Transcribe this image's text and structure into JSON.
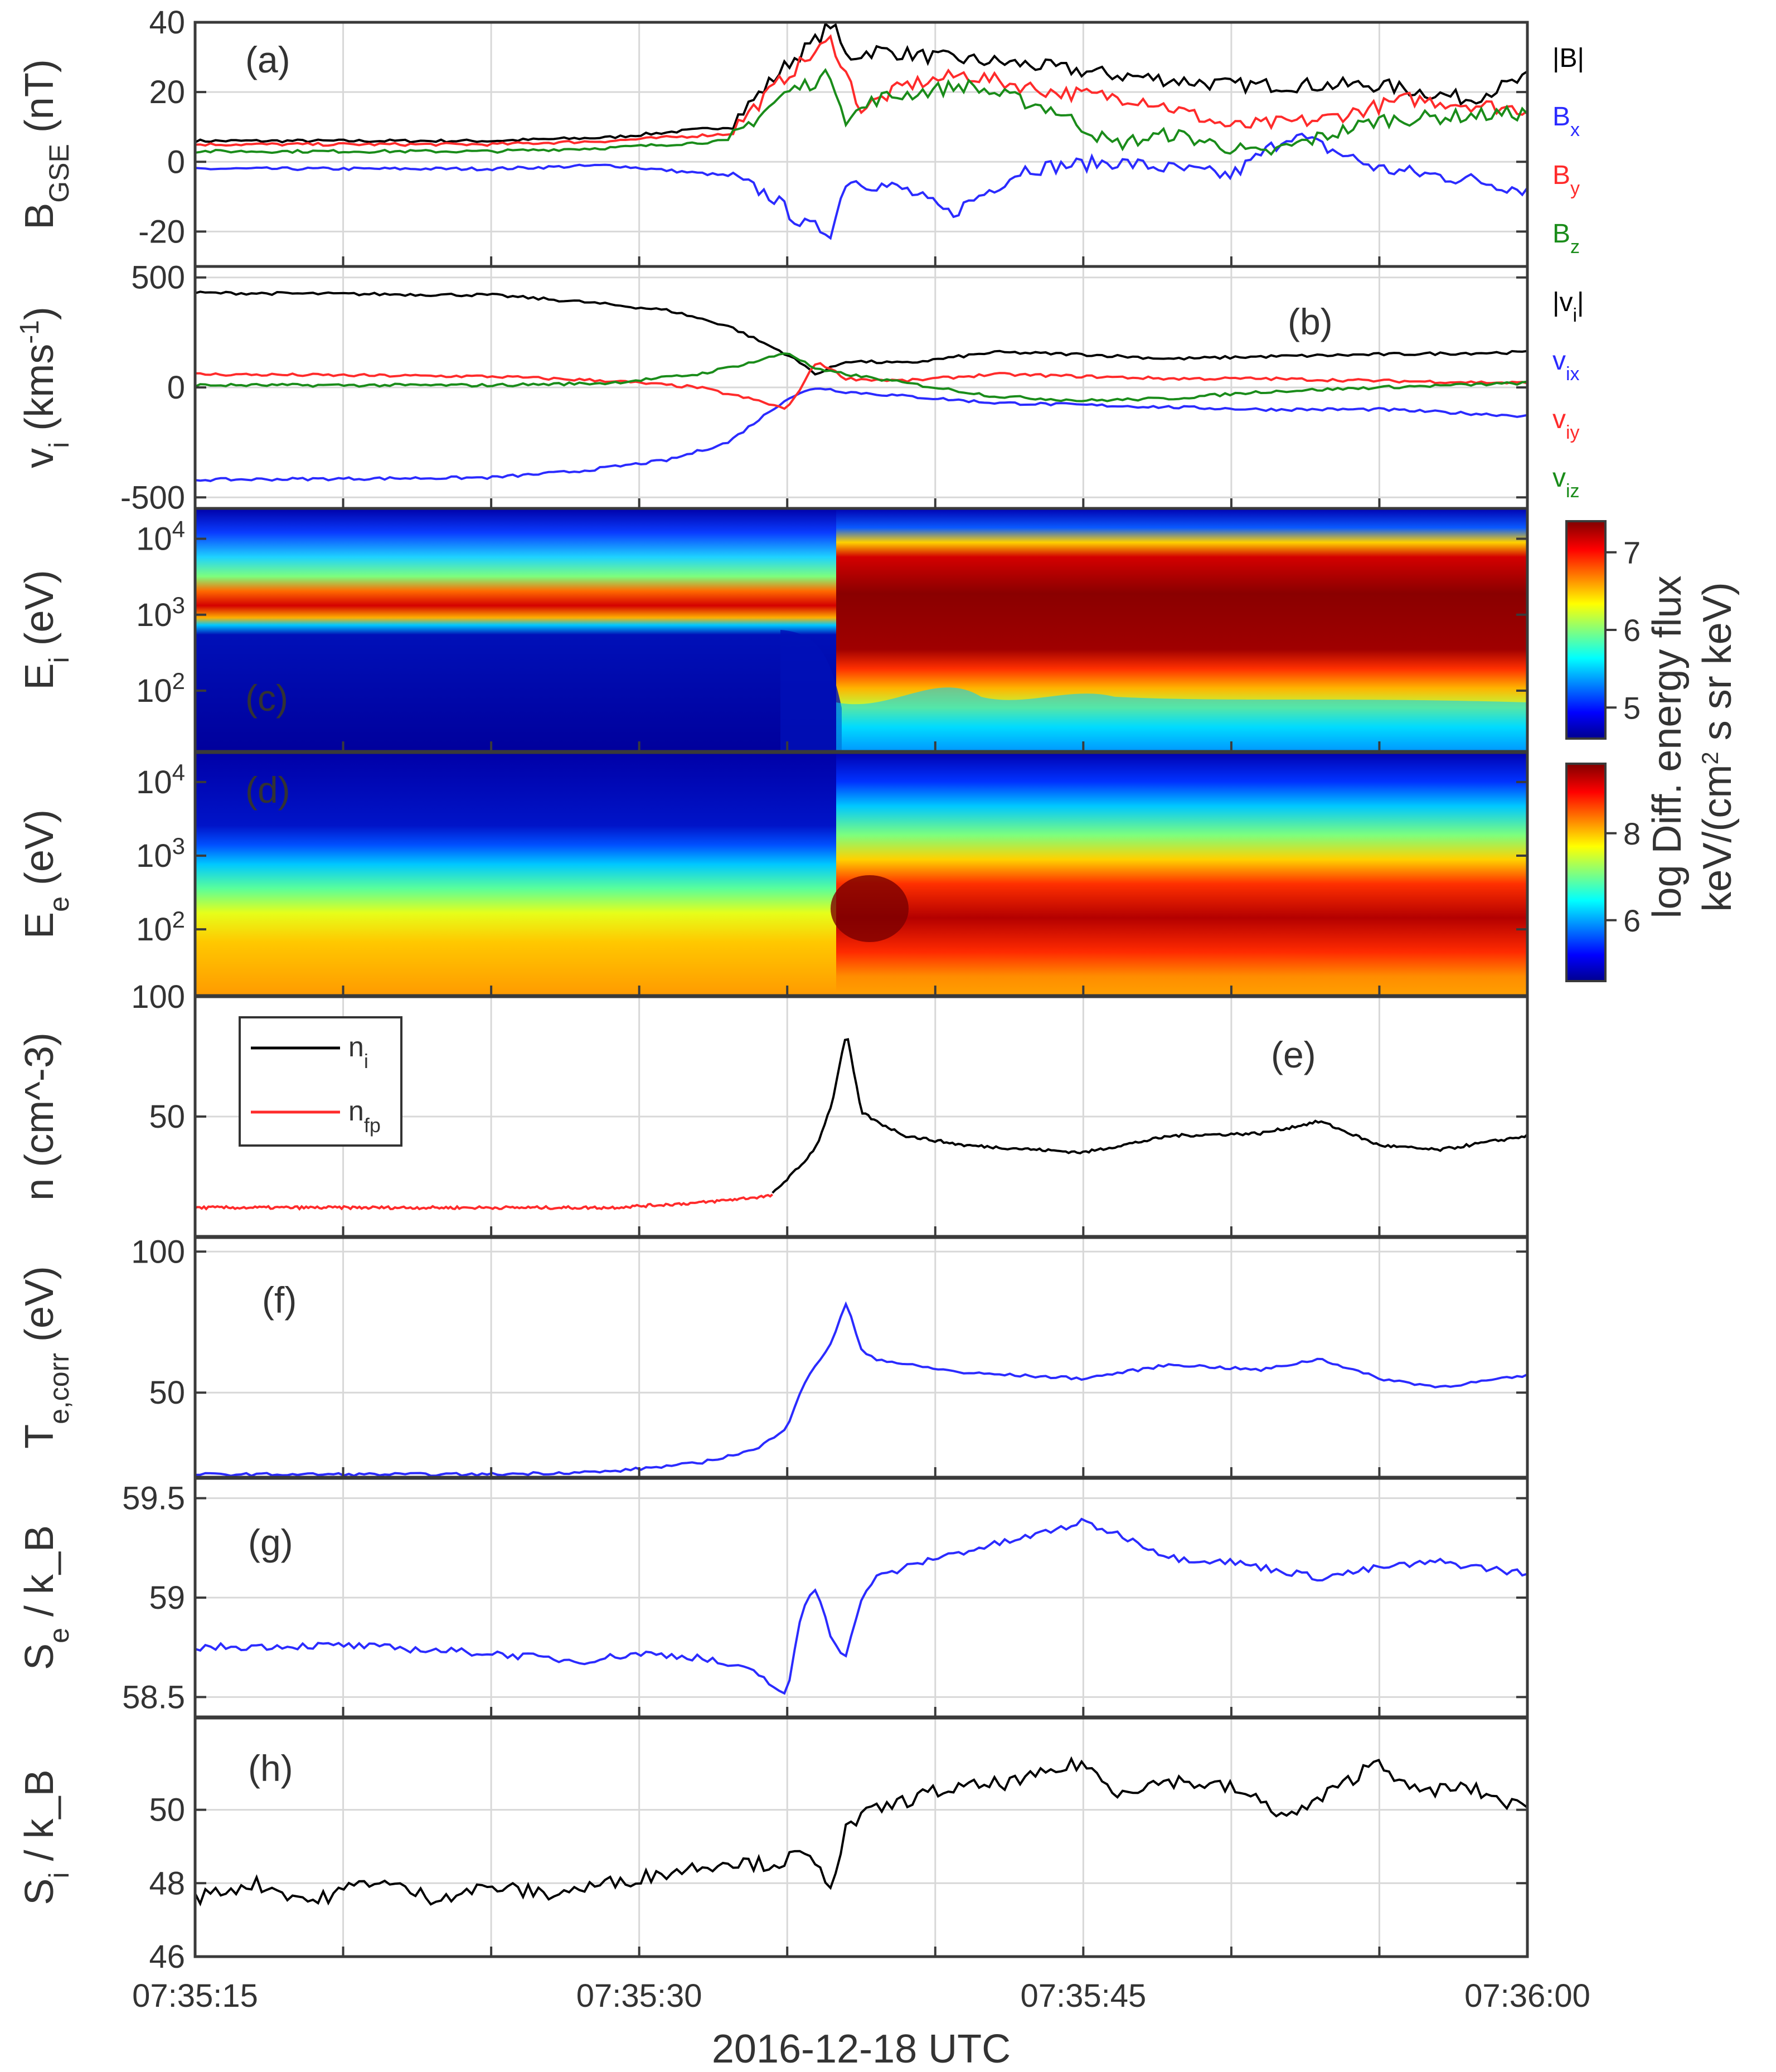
{
  "chart_data": {
    "type": "line",
    "xlabel": "2016-12-18 UTC",
    "x_range_seconds": [
      0,
      45
    ],
    "x_ticks": [
      "07:35:15",
      "07:35:30",
      "07:35:45",
      "07:36:00"
    ],
    "panels": [
      {
        "id": "a",
        "label": "(a)",
        "ylabel": "B_GSE (nT)",
        "ylim": [
          -30,
          40
        ],
        "yticks": [
          "40",
          "20",
          "0",
          "-20"
        ],
        "legend": [
          "|B|",
          "Bx",
          "By",
          "Bz"
        ],
        "series": [
          {
            "name": "|B|",
            "color": "#000000",
            "x": [
              0,
              10,
              14,
              18,
              20,
              21,
              21.5,
              22,
              23,
              25,
              28,
              31,
              35,
              40,
              43,
              45
            ],
            "y": [
              6,
              6,
              7,
              10,
              28,
              35,
              40,
              30,
              32,
              30,
              28,
              25,
              22,
              22,
              18,
              24
            ]
          },
          {
            "name": "Bx",
            "color": "#2b2bff",
            "x": [
              0,
              10,
              14,
              18,
              19.5,
              20.5,
              21.5,
              22,
              24,
              25.5,
              28,
              31,
              35,
              37,
              40,
              43,
              45
            ],
            "y": [
              -2,
              -2,
              -1,
              -4,
              -10,
              -18,
              -20,
              -5,
              -8,
              -15,
              -2,
              0,
              -4,
              8,
              -2,
              -5,
              -8
            ]
          },
          {
            "name": "By",
            "color": "#ff2b2b",
            "x": [
              0,
              10,
              14,
              18,
              20,
              21.5,
              22.5,
              24,
              26,
              29,
              32,
              35,
              38,
              41,
              45
            ],
            "y": [
              5,
              5,
              6,
              8,
              25,
              35,
              15,
              22,
              25,
              20,
              18,
              10,
              12,
              18,
              15
            ]
          },
          {
            "name": "Bz",
            "color": "#1a8c1a",
            "x": [
              0,
              10,
              14,
              18,
              20,
              21.5,
              22,
              23,
              26,
              29,
              31,
              33,
              36,
              40,
              45
            ],
            "y": [
              3,
              3,
              4,
              6,
              20,
              25,
              12,
              18,
              22,
              15,
              5,
              8,
              2,
              12,
              14
            ]
          }
        ]
      },
      {
        "id": "b",
        "label": "(b)",
        "ylabel": "v_i (kms^-1)",
        "ylim": [
          -550,
          550
        ],
        "yticks": [
          "500",
          "0",
          "-500"
        ],
        "legend": [
          "|v_i|",
          "v_ix",
          "v_iy",
          "v_iz"
        ],
        "series": [
          {
            "name": "|v_i|",
            "color": "#000000",
            "x": [
              0,
              10,
              13,
              16,
              18,
              20,
              21,
              22,
              24,
              27,
              30,
              33,
              36,
              40,
              45
            ],
            "y": [
              430,
              420,
              390,
              350,
              280,
              150,
              60,
              120,
              110,
              160,
              150,
              130,
              140,
              150,
              160
            ]
          },
          {
            "name": "v_ix",
            "color": "#2b2bff",
            "x": [
              0,
              10,
              13,
              16,
              18,
              20,
              21,
              22,
              24,
              27,
              30,
              33,
              36,
              40,
              45
            ],
            "y": [
              -420,
              -410,
              -380,
              -330,
              -250,
              -50,
              0,
              -20,
              -40,
              -70,
              -80,
              -90,
              -100,
              -100,
              -130
            ]
          },
          {
            "name": "v_iy",
            "color": "#ff2b2b",
            "x": [
              0,
              10,
              14,
              17,
              19,
              20,
              21,
              22,
              24,
              27,
              30,
              33,
              36,
              40,
              45
            ],
            "y": [
              60,
              50,
              30,
              0,
              -60,
              -100,
              120,
              40,
              30,
              60,
              50,
              40,
              40,
              30,
              20
            ]
          },
          {
            "name": "v_iz",
            "color": "#1a8c1a",
            "x": [
              0,
              10,
              14,
              17,
              19,
              20,
              21,
              22,
              24,
              27,
              30,
              33,
              36,
              40,
              45
            ],
            "y": [
              10,
              10,
              20,
              60,
              120,
              160,
              80,
              60,
              20,
              -40,
              -60,
              -50,
              -20,
              0,
              20
            ]
          }
        ]
      },
      {
        "id": "c",
        "label": "(c)",
        "ylabel": "E_i (eV)",
        "type": "heatmap",
        "yticks": [
          "10^4",
          "10^3",
          "10^2"
        ],
        "log_range": [
          1.2,
          4.4
        ],
        "colorbar": {
          "ticks": [
            "7",
            "6",
            "5"
          ],
          "range": [
            4.6,
            7.4
          ]
        }
      },
      {
        "id": "d",
        "label": "(d)",
        "ylabel": "E_e (eV)",
        "type": "heatmap",
        "yticks": [
          "10^4",
          "10^3",
          "10^2"
        ],
        "log_range": [
          1.1,
          4.4
        ],
        "colorbar": {
          "ticks": [
            "8",
            "6"
          ],
          "range": [
            4.6,
            9.6
          ]
        }
      },
      {
        "id": "e",
        "label": "(e)",
        "ylabel": "n (cm^-3)",
        "ylim": [
          0,
          100
        ],
        "yticks": [
          "100",
          "50"
        ],
        "legend": [
          "n_i",
          "n_fp"
        ],
        "series": [
          {
            "name": "n_i",
            "color": "#000000",
            "x": [
              19.5,
              20.5,
              21,
              21.5,
              22,
              22.5,
              23,
              24,
              26,
              30,
              33,
              36,
              38,
              40,
              42,
              45
            ],
            "y": [
              18,
              30,
              38,
              55,
              85,
              52,
              48,
              42,
              38,
              35,
              42,
              43,
              48,
              38,
              36,
              42
            ]
          },
          {
            "name": "n_fp",
            "color": "#ff2b2b",
            "x": [
              0,
              10,
              14,
              17,
              19.5
            ],
            "y": [
              12,
              12,
              12,
              14,
              17
            ]
          }
        ]
      },
      {
        "id": "f",
        "label": "(f)",
        "ylabel": "T_e,corr (eV)",
        "ylim": [
          20,
          105
        ],
        "yticks": [
          "100",
          "50"
        ],
        "series": [
          {
            "name": "T_e,corr",
            "color": "#2b2bff",
            "x": [
              0,
              10,
              14,
              17,
              19,
              20,
              20.5,
              21,
              21.5,
              22,
              22.5,
              23,
              24,
              26,
              30,
              33,
              36,
              38,
              40,
              42,
              45
            ],
            "y": [
              21,
              21,
              22,
              25,
              30,
              38,
              52,
              60,
              68,
              82,
              65,
              62,
              60,
              57,
              55,
              60,
              58,
              62,
              55,
              52,
              56
            ]
          }
        ]
      },
      {
        "id": "g",
        "label": "(g)",
        "ylabel": "S_e / k_B",
        "ylim": [
          58.4,
          59.6
        ],
        "yticks": [
          "59.5",
          "59",
          "58.5"
        ],
        "series": [
          {
            "name": "S_e / k_B",
            "color": "#2b2bff",
            "x": [
              0,
              5,
              10,
              13,
              15,
              17,
              19,
              20,
              20.5,
              21,
              21.5,
              22,
              22.5,
              23,
              25,
              28,
              30,
              31.5,
              33,
              35,
              38,
              40,
              42,
              45
            ],
            "y": [
              58.75,
              58.76,
              58.72,
              58.68,
              58.72,
              58.7,
              58.62,
              58.5,
              58.95,
              59.05,
              58.8,
              58.7,
              59.0,
              59.1,
              59.2,
              59.3,
              59.38,
              59.3,
              59.2,
              59.18,
              59.1,
              59.15,
              59.18,
              59.12
            ]
          }
        ]
      },
      {
        "id": "h",
        "label": "(h)",
        "ylabel": "S_i / k_B",
        "ylim": [
          46,
          52.5
        ],
        "yticks": [
          "50",
          "48",
          "46"
        ],
        "series": [
          {
            "name": "S_i / k_B",
            "color": "#000000",
            "x": [
              0,
              2,
              4,
              6,
              8,
              10,
              12,
              14,
              16,
              18,
              19.5,
              20.5,
              21.5,
              22,
              22.5,
              23,
              25,
              28,
              30,
              31,
              33,
              35,
              37,
              39,
              40,
              41,
              43,
              45
            ],
            "y": [
              47.6,
              48.0,
              47.5,
              48.1,
              47.6,
              47.9,
              47.7,
              48.0,
              48.3,
              48.6,
              48.5,
              48.8,
              48.0,
              49.5,
              49.8,
              50.0,
              50.5,
              50.8,
              51.3,
              50.5,
              50.8,
              50.6,
              49.8,
              50.8,
              51.4,
              50.5,
              50.6,
              50.0
            ]
          }
        ]
      }
    ]
  }
}
